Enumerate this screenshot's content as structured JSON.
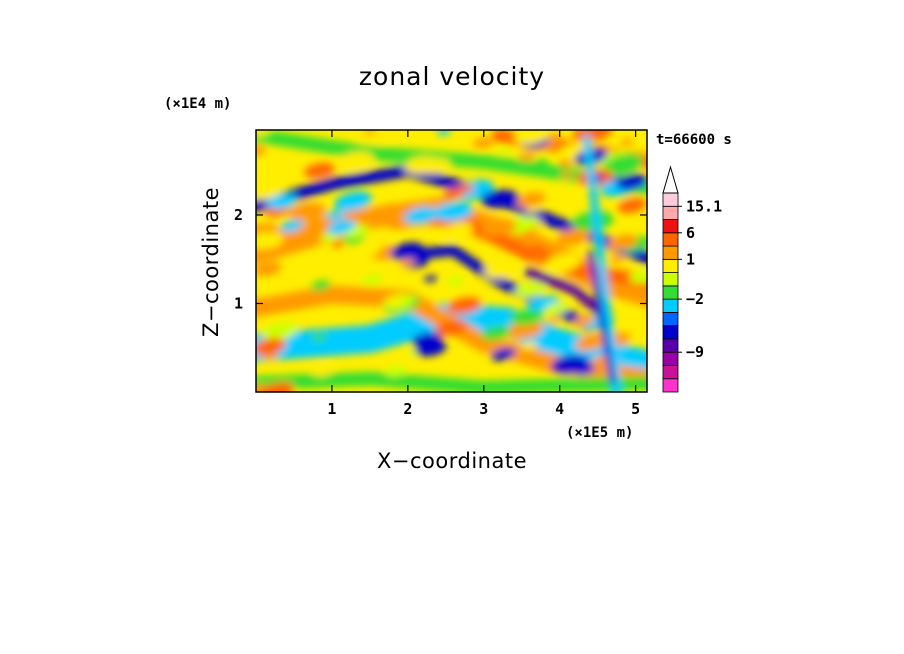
{
  "chart_data": {
    "type": "heatmap",
    "title": "zonal velocity",
    "xlabel": "X−coordinate",
    "ylabel": "Z−coordinate",
    "x_scale_label": "(×1E5 m)",
    "y_scale_label": "(×1E4 m)",
    "time_label": "t=66600 s",
    "xlim": [
      0,
      5.15
    ],
    "ylim": [
      0,
      2.96
    ],
    "x_ticks": [
      1,
      2,
      3,
      4,
      5
    ],
    "y_ticks": [
      1,
      2
    ],
    "x_tick_labels": [
      "1",
      "2",
      "3",
      "4",
      "5"
    ],
    "y_tick_labels": [
      "1",
      "2"
    ],
    "colorbar": {
      "labels": [
        "15.1",
        "6",
        "1",
        "−2",
        "−9"
      ],
      "label_values": [
        15.1,
        6,
        1,
        -2,
        -9
      ],
      "extend": "max",
      "colors": [
        "#ff33cc",
        "#cc1199",
        "#9900aa",
        "#5a00a8",
        "#0000cc",
        "#0066ff",
        "#00ccff",
        "#33dd33",
        "#ccff00",
        "#ffee00",
        "#ff9900",
        "#ff6600",
        "#ee1111",
        "#ffaaaa",
        "#ffccdd"
      ]
    }
  }
}
